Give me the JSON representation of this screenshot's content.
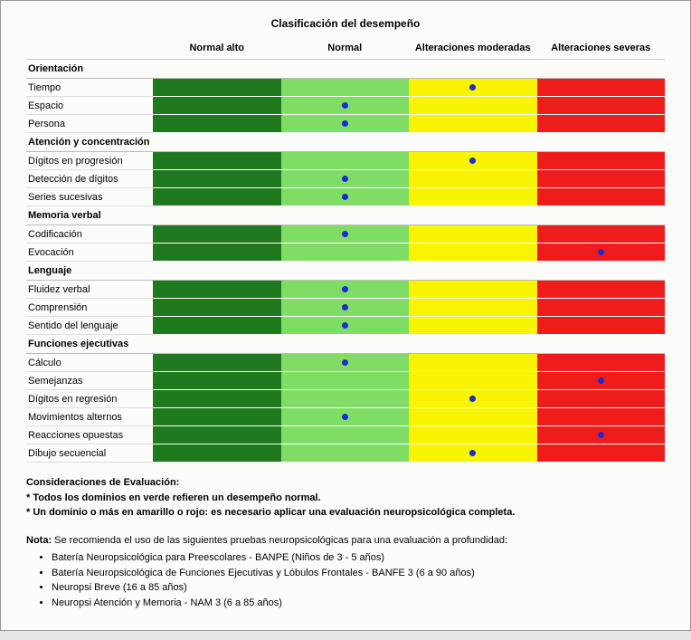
{
  "title": "Clasificación del desempeño",
  "colors": {
    "normal_alto": "#1f7a1f",
    "normal": "#7fdc64",
    "alt_moderadas": "#f9f400",
    "alt_severas": "#ef1c1c",
    "dot": "#1a2bd6"
  },
  "columns": [
    "Normal alto",
    "Normal",
    "Alteraciones moderadas",
    "Alteraciones severas"
  ],
  "sections": [
    {
      "name": "Orientación",
      "rows": [
        {
          "label": "Tiempo",
          "mark": 2
        },
        {
          "label": "Espacio",
          "mark": 1
        },
        {
          "label": "Persona",
          "mark": 1
        }
      ]
    },
    {
      "name": "Atención y concentración",
      "rows": [
        {
          "label": "Dígitos en progresión",
          "mark": 2
        },
        {
          "label": "Detección de dígitos",
          "mark": 1
        },
        {
          "label": "Series sucesivas",
          "mark": 1
        }
      ]
    },
    {
      "name": "Memoria verbal",
      "rows": [
        {
          "label": "Codificación",
          "mark": 1
        },
        {
          "label": "Evocación",
          "mark": 3
        }
      ]
    },
    {
      "name": "Lenguaje",
      "rows": [
        {
          "label": "Fluidez verbal",
          "mark": 1
        },
        {
          "label": "Comprensión",
          "mark": 1
        },
        {
          "label": "Sentido del lenguaje",
          "mark": 1
        }
      ]
    },
    {
      "name": "Funciones ejecutivas",
      "rows": [
        {
          "label": "Cálculo",
          "mark": 1
        },
        {
          "label": "Semejanzas",
          "mark": 3
        },
        {
          "label": "Dígitos en regresión",
          "mark": 2
        },
        {
          "label": "Movimientos alternos",
          "mark": 1
        },
        {
          "label": "Reacciones opuestas",
          "mark": 3
        },
        {
          "label": "Dibujo secuencial",
          "mark": 2
        }
      ]
    }
  ],
  "considerations": {
    "heading": "Consideraciones de Evaluación:",
    "lines": [
      "Todos los dominios en verde refieren un desempeño normal.",
      "Un dominio o más en amarillo o rojo: es necesario aplicar una evaluación neuropsicológica completa."
    ]
  },
  "nota": {
    "label": "Nota:",
    "intro": "Se recomienda el uso de las siguientes pruebas neuropsicológicas para una evaluación a profundidad:",
    "items": [
      "Batería Neuropsicológica para Preescolares - BANPE (Niños de 3 - 5 años)",
      "Batería Neuropsicológica de Funciones Ejecutivas y Lóbulos Frontales - BANFE 3 (6 a 90 años)",
      "Neuropsi Breve (16 a 85 años)",
      "Neuropsi Atención y Memoria - NAM 3 (6 a 85 años)"
    ]
  }
}
